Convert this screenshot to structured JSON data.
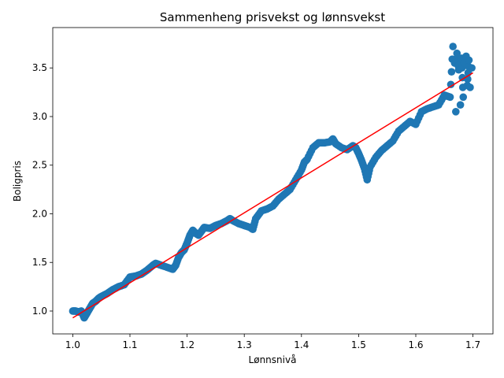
{
  "chart_data": {
    "type": "scatter",
    "title": "Sammenheng prisvekst og lønnsvekst",
    "xlabel": "Lønnsnivå",
    "ylabel": "Boligpris",
    "xlim": [
      0.965,
      1.735
    ],
    "ylim": [
      0.765,
      3.915
    ],
    "xticks": [
      "1.0",
      "1.1",
      "1.2",
      "1.3",
      "1.4",
      "1.5",
      "1.6",
      "1.7"
    ],
    "yticks": [
      "1.0",
      "1.5",
      "2.0",
      "2.5",
      "3.0",
      "3.5"
    ],
    "grid": false,
    "colors": {
      "points": "#1f77b4",
      "fit_line": "#ff0000",
      "axes": "#000000"
    },
    "series": [
      {
        "type": "scatter",
        "x": [
          1.0,
          1.005,
          1.01,
          1.015,
          1.02,
          1.025,
          1.03,
          1.035,
          1.04,
          1.045,
          1.05,
          1.06,
          1.07,
          1.08,
          1.09,
          1.1,
          1.11,
          1.12,
          1.13,
          1.14,
          1.145,
          1.15,
          1.16,
          1.17,
          1.175,
          1.18,
          1.185,
          1.19,
          1.195,
          1.2,
          1.205,
          1.21,
          1.215,
          1.22,
          1.225,
          1.23,
          1.24,
          1.25,
          1.26,
          1.27,
          1.275,
          1.28,
          1.29,
          1.3,
          1.31,
          1.315,
          1.32,
          1.33,
          1.34,
          1.35,
          1.36,
          1.37,
          1.38,
          1.39,
          1.4,
          1.405,
          1.41,
          1.42,
          1.43,
          1.44,
          1.45,
          1.455,
          1.46,
          1.47,
          1.48,
          1.49,
          1.495,
          1.5,
          1.505,
          1.51,
          1.515,
          1.52,
          1.53,
          1.54,
          1.55,
          1.56,
          1.57,
          1.58,
          1.59,
          1.6,
          1.61,
          1.62,
          1.63,
          1.64,
          1.65,
          1.66,
          1.665,
          1.668,
          1.67,
          1.672,
          1.675,
          1.678,
          1.68,
          1.683,
          1.685,
          1.688,
          1.69,
          1.693,
          1.695,
          1.698
        ],
        "y": [
          1.0,
          1.0,
          0.99,
          1.0,
          0.93,
          0.98,
          1.03,
          1.08,
          1.1,
          1.13,
          1.15,
          1.18,
          1.22,
          1.25,
          1.27,
          1.35,
          1.36,
          1.38,
          1.42,
          1.47,
          1.49,
          1.48,
          1.46,
          1.44,
          1.43,
          1.47,
          1.55,
          1.6,
          1.63,
          1.7,
          1.78,
          1.83,
          1.8,
          1.78,
          1.82,
          1.86,
          1.85,
          1.88,
          1.9,
          1.93,
          1.95,
          1.93,
          1.9,
          1.88,
          1.86,
          1.84,
          1.95,
          2.03,
          2.05,
          2.08,
          2.15,
          2.2,
          2.25,
          2.35,
          2.45,
          2.53,
          2.56,
          2.68,
          2.73,
          2.73,
          2.74,
          2.77,
          2.72,
          2.68,
          2.66,
          2.7,
          2.68,
          2.62,
          2.55,
          2.47,
          2.35,
          2.48,
          2.58,
          2.65,
          2.7,
          2.75,
          2.85,
          2.9,
          2.95,
          2.92,
          3.05,
          3.08,
          3.1,
          3.12,
          3.22,
          3.2,
          3.72,
          3.55,
          3.05,
          3.65,
          3.48,
          3.12,
          3.6,
          3.2,
          3.55,
          3.62,
          3.32,
          3.58,
          3.3,
          3.5
        ]
      },
      {
        "type": "line",
        "x": [
          1.0,
          1.7
        ],
        "y": [
          0.93,
          3.45
        ]
      }
    ]
  }
}
